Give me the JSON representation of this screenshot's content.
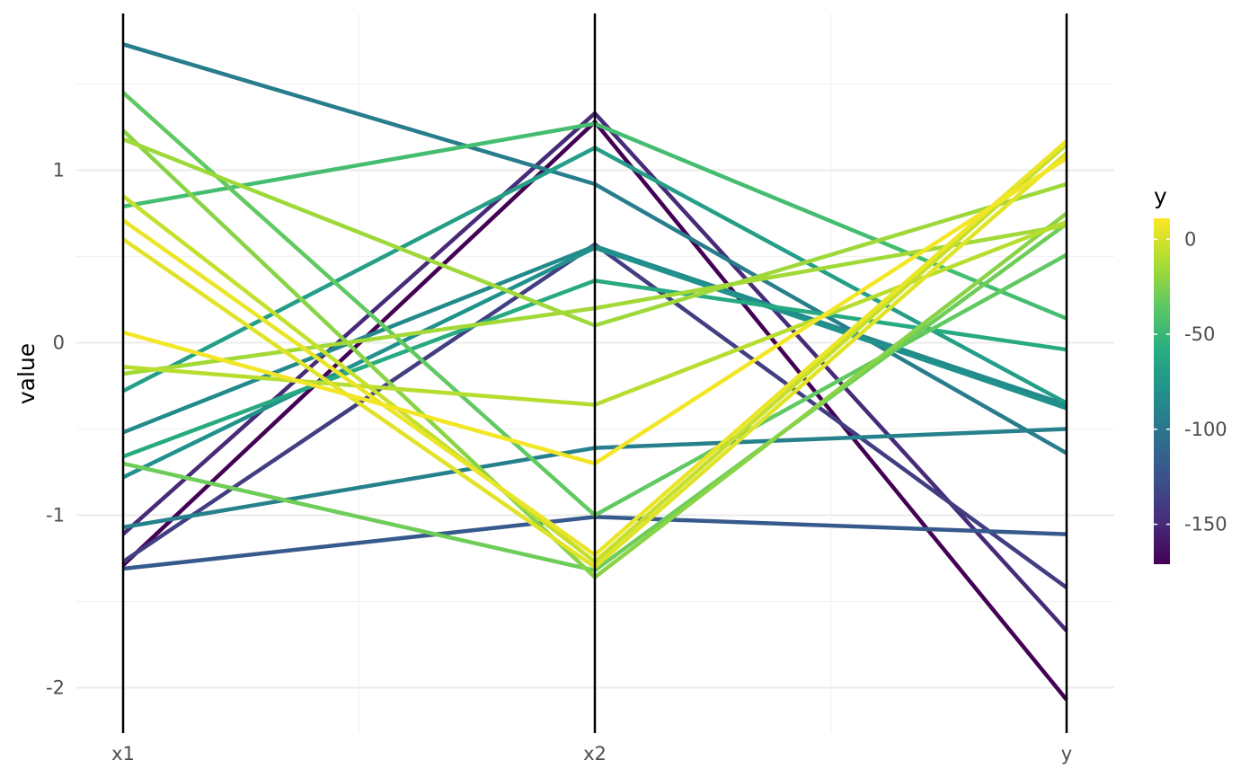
{
  "chart_data": {
    "type": "parallel-coordinates",
    "ylabel": "value",
    "axes": [
      "x1",
      "x2",
      "y"
    ],
    "y_ticks": [
      1,
      0,
      -1,
      -2
    ],
    "y_tick_labels": [
      "1",
      "0",
      "-1",
      "-2"
    ],
    "ylim": [
      -2.25,
      1.9
    ],
    "grid": true,
    "legend": {
      "title": "y",
      "position": "right",
      "ticks": [
        0,
        -50,
        -100,
        -150
      ],
      "tick_labels": [
        "0",
        "-50",
        "-100",
        "-150"
      ],
      "range": [
        -171,
        11
      ],
      "colormap": "viridis"
    },
    "series": [
      {
        "color_value": -95,
        "values": [
          1.73,
          0.92,
          -0.64
        ]
      },
      {
        "color_value": -34,
        "values": [
          1.45,
          -1.0,
          0.51
        ]
      },
      {
        "color_value": -22,
        "values": [
          1.23,
          -1.36,
          0.75
        ]
      },
      {
        "color_value": -16,
        "values": [
          1.18,
          0.1,
          0.92
        ]
      },
      {
        "color_value": -5,
        "values": [
          0.85,
          -1.27,
          1.15
        ]
      },
      {
        "color_value": -45,
        "values": [
          0.79,
          1.27,
          0.14
        ]
      },
      {
        "color_value": 6,
        "values": [
          0.71,
          -1.23,
          1.17
        ]
      },
      {
        "color_value": 3,
        "values": [
          0.6,
          -1.3,
          1.1
        ]
      },
      {
        "color_value": 8,
        "values": [
          0.06,
          -0.7,
          1.07
        ]
      },
      {
        "color_value": -9,
        "values": [
          -0.14,
          -0.36,
          0.7
        ]
      },
      {
        "color_value": -15,
        "values": [
          -0.18,
          0.2,
          0.68
        ]
      },
      {
        "color_value": -70,
        "values": [
          -0.28,
          1.13,
          -0.35
        ]
      },
      {
        "color_value": -85,
        "values": [
          -0.52,
          0.56,
          -0.36
        ]
      },
      {
        "color_value": -60,
        "values": [
          -0.66,
          0.36,
          -0.04
        ]
      },
      {
        "color_value": -80,
        "values": [
          -0.78,
          0.55,
          -0.38
        ]
      },
      {
        "color_value": -30,
        "values": [
          -0.7,
          -1.32,
          0.69
        ]
      },
      {
        "color_value": -92,
        "values": [
          -1.07,
          -0.61,
          -0.5
        ]
      },
      {
        "color_value": -150,
        "values": [
          -1.11,
          1.33,
          -1.67
        ]
      },
      {
        "color_value": -138,
        "values": [
          -1.27,
          0.57,
          -1.42
        ]
      },
      {
        "color_value": -171,
        "values": [
          -1.29,
          1.28,
          -2.07
        ]
      },
      {
        "color_value": -120,
        "values": [
          -1.31,
          -1.01,
          -1.11
        ]
      }
    ]
  }
}
